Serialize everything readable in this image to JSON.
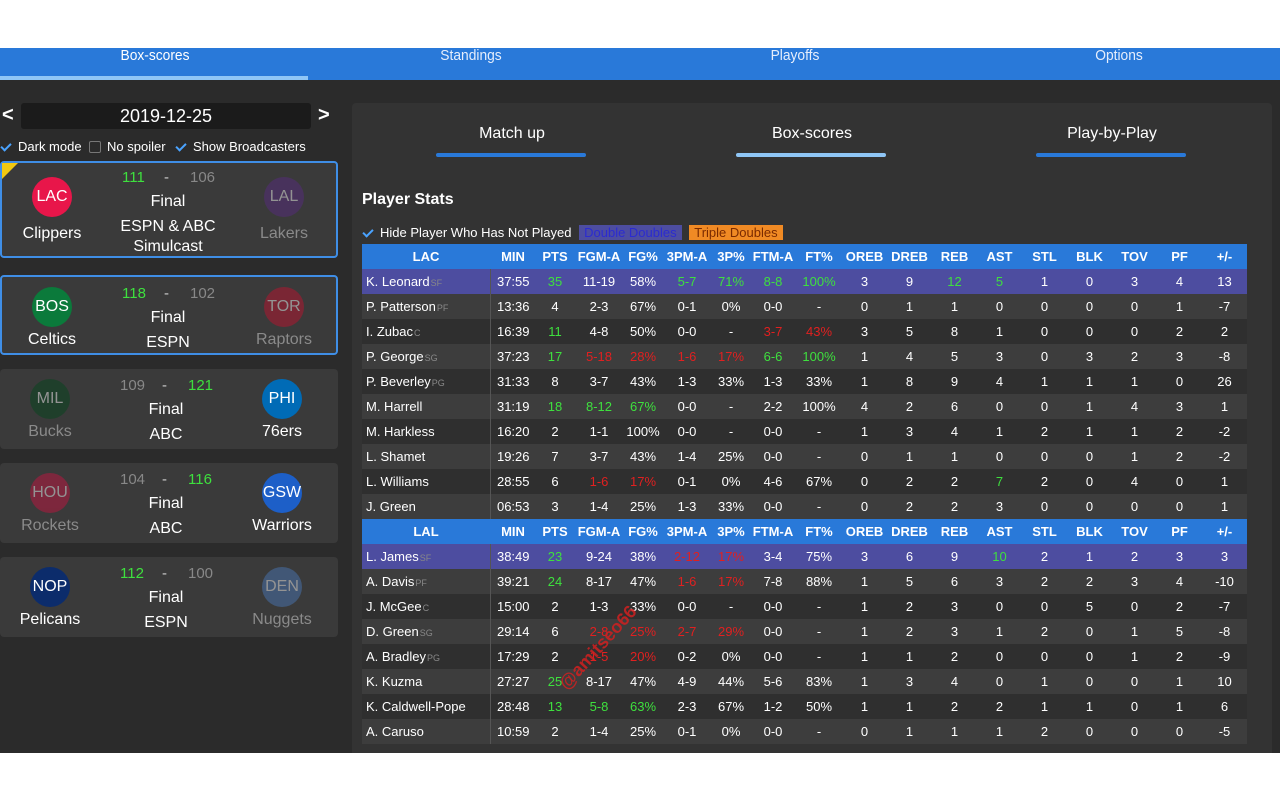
{
  "nav": {
    "tabs": [
      {
        "label": "Box-scores"
      },
      {
        "label": "Standings"
      },
      {
        "label": "Playoffs"
      },
      {
        "label": "Options"
      }
    ]
  },
  "date": {
    "value": "2019-12-25",
    "prev": "<",
    "next": ">"
  },
  "options": {
    "dark_mode": "Dark mode",
    "no_spoiler": "No spoiler",
    "show_broadcasters": "Show Broadcasters"
  },
  "games": [
    {
      "home": {
        "abbr": "LAC",
        "name": "Clippers",
        "color": "#e8164a",
        "score": "111",
        "winner": true
      },
      "away": {
        "abbr": "LAL",
        "name": "Lakers",
        "color": "#5b2a86",
        "score": "106",
        "winner": false
      },
      "status": "Final",
      "broadcast": "ESPN & ABC Simulcast"
    },
    {
      "home": {
        "abbr": "BOS",
        "name": "Celtics",
        "color": "#0b7a3b",
        "score": "118",
        "winner": true
      },
      "away": {
        "abbr": "TOR",
        "name": "Raptors",
        "color": "#c8102e",
        "score": "102",
        "winner": false
      },
      "status": "Final",
      "broadcast": "ESPN"
    },
    {
      "home": {
        "abbr": "MIL",
        "name": "Bucks",
        "color": "#00471b",
        "score": "109",
        "winner": false
      },
      "away": {
        "abbr": "PHI",
        "name": "76ers",
        "color": "#006bb6",
        "score": "121",
        "winner": true
      },
      "status": "Final",
      "broadcast": "ABC"
    },
    {
      "home": {
        "abbr": "HOU",
        "name": "Rockets",
        "color": "#ce1141",
        "score": "104",
        "winner": false
      },
      "away": {
        "abbr": "GSW",
        "name": "Warriors",
        "color": "#1d5fc8",
        "score": "116",
        "winner": true
      },
      "status": "Final",
      "broadcast": "ABC"
    },
    {
      "home": {
        "abbr": "NOP",
        "name": "Pelicans",
        "color": "#0c2c6b",
        "score": "112",
        "winner": true
      },
      "away": {
        "abbr": "DEN",
        "name": "Nuggets",
        "color": "#4a7cbf",
        "score": "100",
        "winner": false
      },
      "status": "Final",
      "broadcast": "ESPN"
    }
  ],
  "panel": {
    "tabs": [
      "Match up",
      "Box-scores",
      "Play-by-Play"
    ],
    "title": "Player Stats",
    "hide_label": "Hide Player Who Has Not Played",
    "legend_double": "Double Doubles",
    "legend_triple": "Triple Doubles",
    "double_color": "#4d4da0",
    "triple_color": "#f08a24"
  },
  "columns": [
    "MIN",
    "PTS",
    "FGM-A",
    "FG%",
    "3PM-A",
    "3P%",
    "FTM-A",
    "FT%",
    "OREB",
    "DREB",
    "REB",
    "AST",
    "STL",
    "BLK",
    "TOV",
    "PF",
    "+/-"
  ],
  "teams": [
    {
      "abbr": "LAC",
      "players": [
        {
          "name": "K. Leonard",
          "pos": "SF",
          "dd": true,
          "stats": [
            "37:55",
            "35",
            "11-19",
            "58%",
            "5-7",
            "71%",
            "8-8",
            "100%",
            "3",
            "9",
            "12",
            "5",
            "1",
            "0",
            "3",
            "4",
            "13"
          ],
          "hl": {
            "1": "g",
            "4": "g",
            "5": "g",
            "6": "g",
            "7": "g",
            "10": "g",
            "11": "g"
          }
        },
        {
          "name": "P. Patterson",
          "pos": "PF",
          "stats": [
            "13:36",
            "4",
            "2-3",
            "67%",
            "0-1",
            "0%",
            "0-0",
            "-",
            "0",
            "1",
            "1",
            "0",
            "0",
            "0",
            "0",
            "1",
            "-7"
          ],
          "hl": {}
        },
        {
          "name": "I. Zubac",
          "pos": "C",
          "stats": [
            "16:39",
            "11",
            "4-8",
            "50%",
            "0-0",
            "-",
            "3-7",
            "43%",
            "3",
            "5",
            "8",
            "1",
            "0",
            "0",
            "0",
            "2",
            "2"
          ],
          "hl": {
            "1": "g",
            "6": "r",
            "7": "r"
          }
        },
        {
          "name": "P. George",
          "pos": "SG",
          "stats": [
            "37:23",
            "17",
            "5-18",
            "28%",
            "1-6",
            "17%",
            "6-6",
            "100%",
            "1",
            "4",
            "5",
            "3",
            "0",
            "3",
            "2",
            "3",
            "-8"
          ],
          "hl": {
            "1": "g",
            "2": "r",
            "3": "r",
            "4": "r",
            "5": "r",
            "6": "g",
            "7": "g"
          }
        },
        {
          "name": "P. Beverley",
          "pos": "PG",
          "stats": [
            "31:33",
            "8",
            "3-7",
            "43%",
            "1-3",
            "33%",
            "1-3",
            "33%",
            "1",
            "8",
            "9",
            "4",
            "1",
            "1",
            "1",
            "0",
            "26"
          ],
          "hl": {}
        },
        {
          "name": "M. Harrell",
          "pos": "",
          "stats": [
            "31:19",
            "18",
            "8-12",
            "67%",
            "0-0",
            "-",
            "2-2",
            "100%",
            "4",
            "2",
            "6",
            "0",
            "0",
            "1",
            "4",
            "3",
            "1"
          ],
          "hl": {
            "1": "g",
            "2": "g",
            "3": "g"
          }
        },
        {
          "name": "M. Harkless",
          "pos": "",
          "stats": [
            "16:20",
            "2",
            "1-1",
            "100%",
            "0-0",
            "-",
            "0-0",
            "-",
            "1",
            "3",
            "4",
            "1",
            "2",
            "1",
            "1",
            "2",
            "-2"
          ],
          "hl": {}
        },
        {
          "name": "L. Shamet",
          "pos": "",
          "stats": [
            "19:26",
            "7",
            "3-7",
            "43%",
            "1-4",
            "25%",
            "0-0",
            "-",
            "0",
            "1",
            "1",
            "0",
            "0",
            "0",
            "1",
            "2",
            "-2"
          ],
          "hl": {}
        },
        {
          "name": "L. Williams",
          "pos": "",
          "stats": [
            "28:55",
            "6",
            "1-6",
            "17%",
            "0-1",
            "0%",
            "4-6",
            "67%",
            "0",
            "2",
            "2",
            "7",
            "2",
            "0",
            "4",
            "0",
            "1"
          ],
          "hl": {
            "2": "r",
            "3": "r",
            "11": "g"
          }
        },
        {
          "name": "J. Green",
          "pos": "",
          "stats": [
            "06:53",
            "3",
            "1-4",
            "25%",
            "1-3",
            "33%",
            "0-0",
            "-",
            "0",
            "2",
            "2",
            "3",
            "0",
            "0",
            "0",
            "0",
            "1"
          ],
          "hl": {}
        }
      ]
    },
    {
      "abbr": "LAL",
      "players": [
        {
          "name": "L. James",
          "pos": "SF",
          "dd": true,
          "stats": [
            "38:49",
            "23",
            "9-24",
            "38%",
            "2-12",
            "17%",
            "3-4",
            "75%",
            "3",
            "6",
            "9",
            "10",
            "2",
            "1",
            "2",
            "3",
            "3"
          ],
          "hl": {
            "1": "g",
            "4": "r",
            "5": "r",
            "11": "g"
          }
        },
        {
          "name": "A. Davis",
          "pos": "PF",
          "stats": [
            "39:21",
            "24",
            "8-17",
            "47%",
            "1-6",
            "17%",
            "7-8",
            "88%",
            "1",
            "5",
            "6",
            "3",
            "2",
            "2",
            "3",
            "4",
            "-10"
          ],
          "hl": {
            "1": "g",
            "4": "r",
            "5": "r"
          }
        },
        {
          "name": "J. McGee",
          "pos": "C",
          "stats": [
            "15:00",
            "2",
            "1-3",
            "33%",
            "0-0",
            "-",
            "0-0",
            "-",
            "1",
            "2",
            "3",
            "0",
            "0",
            "5",
            "0",
            "2",
            "-7"
          ],
          "hl": {}
        },
        {
          "name": "D. Green",
          "pos": "SG",
          "stats": [
            "29:14",
            "6",
            "2-8",
            "25%",
            "2-7",
            "29%",
            "0-0",
            "-",
            "1",
            "2",
            "3",
            "1",
            "2",
            "0",
            "1",
            "5",
            "-8"
          ],
          "hl": {
            "2": "r",
            "3": "r",
            "4": "r",
            "5": "r"
          }
        },
        {
          "name": "A. Bradley",
          "pos": "PG",
          "stats": [
            "17:29",
            "2",
            "1-5",
            "20%",
            "0-2",
            "0%",
            "0-0",
            "-",
            "1",
            "1",
            "2",
            "0",
            "0",
            "0",
            "1",
            "2",
            "-9"
          ],
          "hl": {
            "2": "r",
            "3": "r"
          }
        },
        {
          "name": "K. Kuzma",
          "pos": "",
          "stats": [
            "27:27",
            "25",
            "8-17",
            "47%",
            "4-9",
            "44%",
            "5-6",
            "83%",
            "1",
            "3",
            "4",
            "0",
            "1",
            "0",
            "0",
            "1",
            "10"
          ],
          "hl": {
            "1": "g"
          }
        },
        {
          "name": "K. Caldwell-Pope",
          "pos": "",
          "stats": [
            "28:48",
            "13",
            "5-8",
            "63%",
            "2-3",
            "67%",
            "1-2",
            "50%",
            "1",
            "1",
            "2",
            "2",
            "1",
            "1",
            "0",
            "1",
            "6"
          ],
          "hl": {
            "1": "g",
            "2": "g",
            "3": "g"
          }
        },
        {
          "name": "A. Caruso",
          "pos": "",
          "stats": [
            "10:59",
            "2",
            "1-4",
            "25%",
            "0-1",
            "0%",
            "0-0",
            "-",
            "0",
            "1",
            "1",
            "1",
            "2",
            "0",
            "0",
            "0",
            "-5"
          ],
          "hl": {}
        }
      ]
    }
  ],
  "watermark": "@amitseo66"
}
